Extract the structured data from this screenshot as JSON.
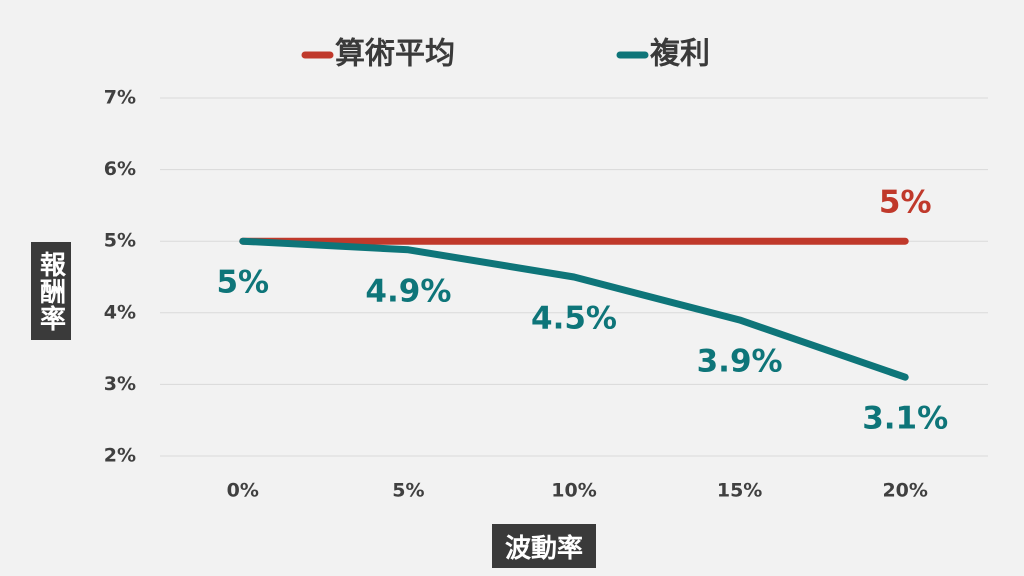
{
  "chart_data": {
    "type": "line",
    "x_label": "波動率",
    "y_label": "報酬率",
    "categories": [
      "0%",
      "5%",
      "10%",
      "15%",
      "20%"
    ],
    "series": [
      {
        "name": "算術平均",
        "color": "#c0392b",
        "values": [
          5,
          5,
          5,
          5,
          5
        ],
        "value_labels": [
          null,
          null,
          null,
          null,
          "5%"
        ]
      },
      {
        "name": "複利",
        "color": "#0e7579",
        "values": [
          5,
          4.88,
          4.5,
          3.9,
          3.1
        ],
        "value_labels": [
          "5%",
          "4.9%",
          "4.5%",
          "3.9%",
          "3.1%"
        ]
      }
    ],
    "ylim": [
      2,
      7
    ],
    "yticks": [
      {
        "value": 2,
        "label": "2%"
      },
      {
        "value": 3,
        "label": "3%"
      },
      {
        "value": 4,
        "label": "4%"
      },
      {
        "value": 5,
        "label": "5%"
      },
      {
        "value": 6,
        "label": "6%"
      },
      {
        "value": 7,
        "label": "7%"
      }
    ],
    "grid": true,
    "legend": "top"
  }
}
